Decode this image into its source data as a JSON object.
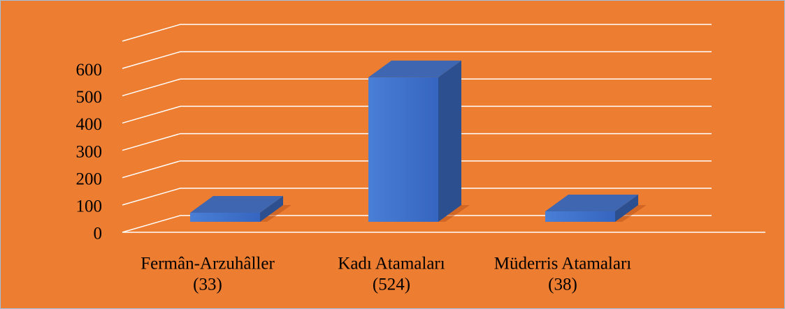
{
  "chart_data": {
    "type": "bar3d",
    "categories": [
      [
        "Fermân-Arzuhâller",
        "(33)"
      ],
      [
        "Kadı Atamaları",
        "(524)"
      ],
      [
        "Müderris Atamaları",
        "(38)"
      ]
    ],
    "values": [
      33,
      524,
      38
    ],
    "color": "#4472c4",
    "ylim": [
      0,
      700
    ],
    "yticks": [
      0,
      100,
      200,
      300,
      400,
      500,
      600
    ],
    "grid": true
  }
}
